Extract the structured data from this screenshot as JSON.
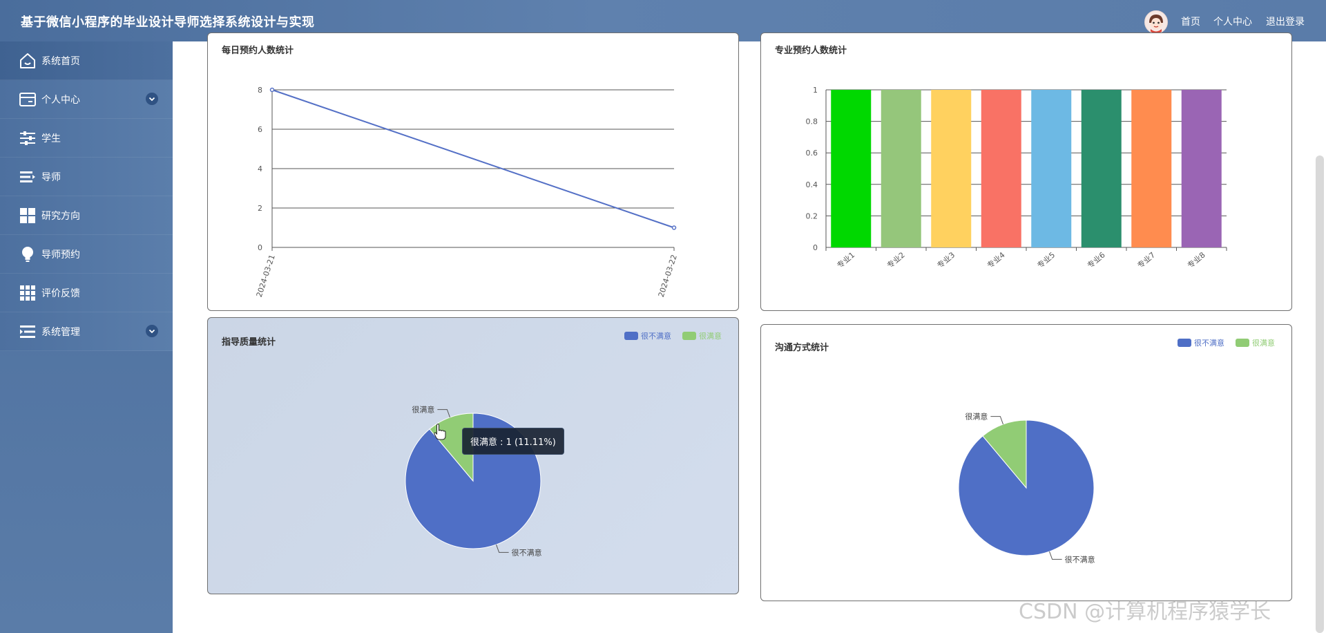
{
  "header": {
    "title": "基于微信小程序的毕业设计导师选择系统设计与实现",
    "nav": {
      "home": "首页",
      "profile": "个人中心",
      "logout": "退出登录"
    }
  },
  "sidebar": {
    "items": [
      {
        "label": "系统首页",
        "icon": "home-icon",
        "active": true,
        "expandable": false
      },
      {
        "label": "个人中心",
        "icon": "card-icon",
        "active": false,
        "expandable": true
      },
      {
        "label": "学生",
        "icon": "sliders-icon",
        "active": false,
        "expandable": false
      },
      {
        "label": "导师",
        "icon": "list-icon",
        "active": false,
        "expandable": false
      },
      {
        "label": "研究方向",
        "icon": "grid-icon",
        "active": false,
        "expandable": false
      },
      {
        "label": "导师预约",
        "icon": "bulb-icon",
        "active": false,
        "expandable": false
      },
      {
        "label": "评价反馈",
        "icon": "table-icon",
        "active": false,
        "expandable": false
      },
      {
        "label": "系统管理",
        "icon": "list-settings-icon",
        "active": false,
        "expandable": true
      }
    ]
  },
  "colors": {
    "accent": "#4a6d9c",
    "line_series": "#5470c6",
    "pie_unsatisfied": "#4f6fc6",
    "pie_satisfied": "#91cc75"
  },
  "chart_data": [
    {
      "type": "line",
      "title": "每日预约人数统计",
      "x": [
        "2024-03-21",
        "2024-03-22"
      ],
      "values": [
        8,
        1
      ],
      "ylim": [
        0,
        8
      ],
      "yticks": [
        0,
        2,
        4,
        6,
        8
      ],
      "grid": true
    },
    {
      "type": "bar",
      "title": "专业预约人数统计",
      "categories": [
        "专业1",
        "专业2",
        "专业3",
        "专业4",
        "专业5",
        "专业6",
        "专业7",
        "专业8"
      ],
      "values": [
        1,
        1,
        1,
        1,
        1,
        1,
        1,
        1
      ],
      "ylim": [
        0,
        1
      ],
      "yticks": [
        "0",
        "0.2",
        "0.4",
        "0.6",
        "0.8",
        "1"
      ],
      "bar_colors": [
        "#00d800",
        "#95c67b",
        "#ffd15f",
        "#f97265",
        "#6db9e4",
        "#2b8f6d",
        "#ff8c4f",
        "#9a65b4"
      ],
      "grid": true
    },
    {
      "type": "pie",
      "title": "指导质量统计",
      "slices": [
        {
          "label": "很不满意",
          "value": 8
        },
        {
          "label": "很满意",
          "value": 1
        }
      ],
      "legend": [
        "很不满意",
        "很满意"
      ],
      "legend_position": "top-right",
      "tooltip": "很满意 : 1 (11.11%)"
    },
    {
      "type": "pie",
      "title": "沟通方式统计",
      "slices": [
        {
          "label": "很不满意",
          "value": 8
        },
        {
          "label": "很满意",
          "value": 1
        }
      ],
      "legend": [
        "很不满意",
        "很满意"
      ],
      "legend_position": "top-right"
    }
  ],
  "watermark": "CSDN @计算机程序猿学长"
}
